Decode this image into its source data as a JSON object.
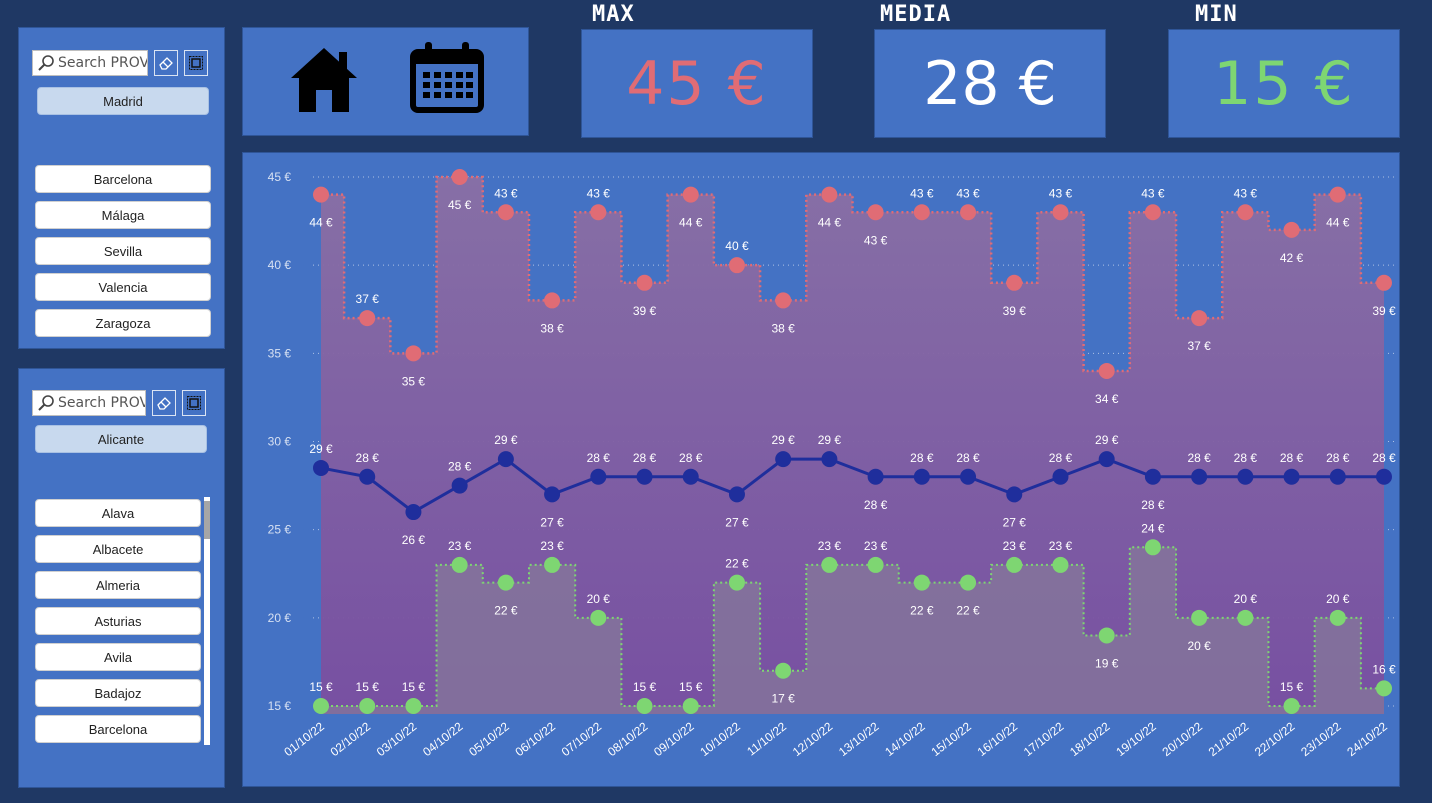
{
  "province_slicer": {
    "search_placeholder": "Search PROVINCIA",
    "selected": "Madrid",
    "items": [
      "Barcelona",
      "Málaga",
      "Sevilla",
      "Valencia",
      "Zaragoza"
    ]
  },
  "origin_slicer": {
    "search_placeholder": "Search PROVINCIA",
    "selected": "Alicante",
    "items": [
      "Alava",
      "Albacete",
      "Almeria",
      "Asturias",
      "Avila",
      "Badajoz",
      "Barcelona"
    ]
  },
  "nav": {
    "home_icon": "home-icon",
    "calendar_icon": "calendar-icon"
  },
  "kpis": {
    "max": {
      "title": "MAX",
      "value": "45 €",
      "color": "#e06c75"
    },
    "media": {
      "title": "MEDIA",
      "value": "28 €",
      "color": "#ffffff"
    },
    "min": {
      "title": "MIN",
      "value": "15 €",
      "color": "#7ed672"
    }
  },
  "colors": {
    "background": "#1f3864",
    "panel": "#4472c4",
    "max": "#e06c75",
    "media": "#1f2e9c",
    "min": "#7ed672"
  },
  "chart_data": {
    "type": "line",
    "x": [
      "01/10/22",
      "02/10/22",
      "03/10/22",
      "04/10/22",
      "05/10/22",
      "06/10/22",
      "07/10/22",
      "08/10/22",
      "09/10/22",
      "10/10/22",
      "11/10/22",
      "12/10/22",
      "13/10/22",
      "14/10/22",
      "15/10/22",
      "16/10/22",
      "17/10/22",
      "18/10/22",
      "19/10/22",
      "20/10/22",
      "21/10/22",
      "22/10/22",
      "23/10/22",
      "24/10/22"
    ],
    "yticks": [
      "15 €",
      "20 €",
      "25 €",
      "30 €",
      "35 €",
      "40 €",
      "45 €"
    ],
    "ylim": [
      15,
      45
    ],
    "grid": true,
    "series": [
      {
        "key": "max",
        "step": true,
        "area": true,
        "values": [
          44,
          37,
          35,
          45,
          43,
          38,
          43,
          39,
          44,
          40,
          38,
          44,
          43,
          43,
          43,
          39,
          43,
          34,
          43,
          37,
          43,
          42,
          44,
          39
        ],
        "labels": [
          "44 €",
          "37 €",
          "35 €",
          "45 €",
          "43 €",
          "38 €",
          "43 €",
          "39 €",
          "44 €",
          "40 €",
          "38 €",
          "44 €",
          "43 €",
          "43 €",
          "43 €",
          "39 €",
          "43 €",
          "34 €",
          "43 €",
          "37 €",
          "43 €",
          "42 €",
          "44 €",
          "39 €"
        ],
        "label_pos": [
          "below",
          "above",
          "below",
          "below",
          "above",
          "below",
          "above",
          "below",
          "below",
          "above",
          "below",
          "below",
          "below",
          "above",
          "above",
          "below",
          "above",
          "below",
          "above",
          "below",
          "above",
          "below",
          "below",
          "below"
        ]
      },
      {
        "key": "media",
        "step": false,
        "area": false,
        "values": [
          28.5,
          28,
          26,
          27.5,
          29,
          27,
          28,
          28,
          28,
          27,
          29,
          29,
          28,
          28,
          28,
          27,
          28,
          29,
          28,
          28,
          28,
          28,
          28,
          28
        ],
        "labels": [
          "29 €",
          "28 €",
          "26 €",
          "28 €",
          "29 €",
          "27 €",
          "28 €",
          "28 €",
          "28 €",
          "27 €",
          "29 €",
          "29 €",
          "28 €",
          "28 €",
          "28 €",
          "27 €",
          "28 €",
          "29 €",
          "28 €",
          "28 €",
          "28 €",
          "28 €",
          "28 €",
          "28 €"
        ],
        "label_pos": [
          "above",
          "above",
          "below",
          "above",
          "above",
          "below",
          "above",
          "above",
          "above",
          "below",
          "above",
          "above",
          "below",
          "above",
          "above",
          "below",
          "above",
          "above",
          "below",
          "above",
          "above",
          "above",
          "above",
          "above"
        ]
      },
      {
        "key": "min",
        "step": true,
        "area": true,
        "values": [
          15,
          15,
          15,
          23,
          22,
          23,
          20,
          15,
          15,
          22,
          17,
          23,
          23,
          22,
          22,
          23,
          23,
          19,
          24,
          20,
          20,
          15,
          20,
          16
        ],
        "labels": [
          "15 €",
          "15 €",
          "15 €",
          "23 €",
          "22 €",
          "23 €",
          "20 €",
          "15 €",
          "15 €",
          "22 €",
          "17 €",
          "23 €",
          "23 €",
          "22 €",
          "22 €",
          "23 €",
          "23 €",
          "19 €",
          "24 €",
          "20 €",
          "20 €",
          "15 €",
          "20 €",
          "16 €"
        ],
        "label_pos": [
          "above",
          "above",
          "above",
          "above",
          "below",
          "above",
          "above",
          "above",
          "above",
          "above",
          "below",
          "above",
          "above",
          "below",
          "below",
          "above",
          "above",
          "below",
          "above",
          "below",
          "above",
          "above",
          "above",
          "above"
        ]
      }
    ]
  }
}
